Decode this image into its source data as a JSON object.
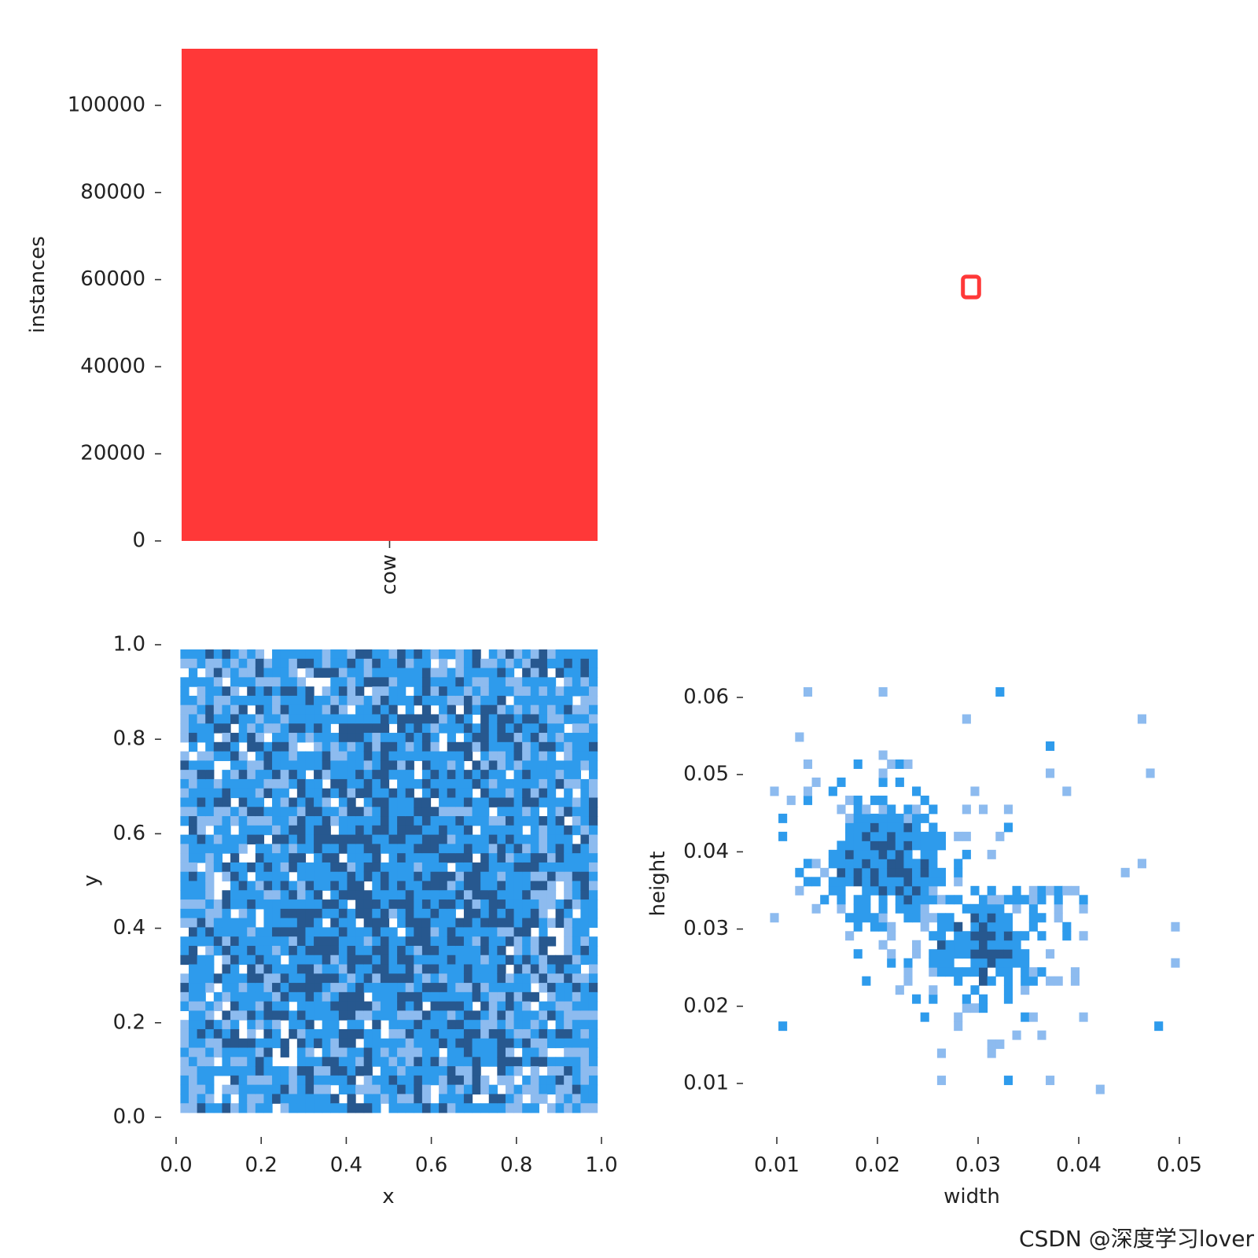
{
  "watermark": "CSDN @深度学习lover",
  "colors": {
    "bar": "#ff3838",
    "hist_light": "#8dbbef",
    "hist_mid": "#2e9bec",
    "hist_dark": "#27588f"
  },
  "chart_data": [
    {
      "id": "instances",
      "type": "bar",
      "categories": [
        "cow"
      ],
      "values": [
        113000
      ],
      "xlabel": "",
      "ylabel": "instances",
      "ylim": [
        0,
        113000
      ],
      "yticks": [
        0,
        20000,
        40000,
        60000,
        80000,
        100000
      ],
      "ytick_labels": [
        "0",
        "20000",
        "40000",
        "60000",
        "80000",
        "100000"
      ]
    },
    {
      "id": "boxes",
      "type": "scatter",
      "description_points": [
        {
          "x": 0.5,
          "y": 0.5,
          "w": 0.029,
          "h": 0.037
        }
      ],
      "xlim": [
        0,
        1
      ],
      "ylim": [
        0,
        1
      ],
      "xlabel": "",
      "ylabel": ""
    },
    {
      "id": "xy",
      "type": "heatmap",
      "xlabel": "x",
      "ylabel": "y",
      "xlim": [
        0,
        1
      ],
      "ylim": [
        0,
        1
      ],
      "bins": 50,
      "xticks": [
        0.0,
        0.2,
        0.4,
        0.6,
        0.8,
        1.0
      ],
      "xtick_labels": [
        "0.0",
        "0.2",
        "0.4",
        "0.6",
        "0.8",
        "1.0"
      ],
      "yticks": [
        0.0,
        0.2,
        0.4,
        0.6,
        0.8,
        1.0
      ],
      "ytick_labels": [
        "0.0",
        "0.2",
        "0.4",
        "0.6",
        "0.8",
        "1.0"
      ],
      "data_range": {
        "x": [
          0.01,
          0.99
        ],
        "y": [
          0.01,
          0.99
        ]
      },
      "distribution": "approximately uniform"
    },
    {
      "id": "wh",
      "type": "heatmap",
      "xlabel": "width",
      "ylabel": "height",
      "xlim": [
        0.0075,
        0.0525
      ],
      "ylim": [
        0.0045,
        0.0685
      ],
      "bins": 50,
      "xticks": [
        0.01,
        0.02,
        0.03,
        0.04,
        0.05
      ],
      "xtick_labels": [
        "0.01",
        "0.02",
        "0.03",
        "0.04",
        "0.05"
      ],
      "yticks": [
        0.01,
        0.02,
        0.03,
        0.04,
        0.05,
        0.06
      ],
      "ytick_labels": [
        "0.01",
        "0.02",
        "0.03",
        "0.04",
        "0.05",
        "0.06"
      ],
      "clusters": [
        {
          "center_width": 0.021,
          "center_height": 0.039
        },
        {
          "center_width": 0.031,
          "center_height": 0.028
        }
      ]
    }
  ]
}
